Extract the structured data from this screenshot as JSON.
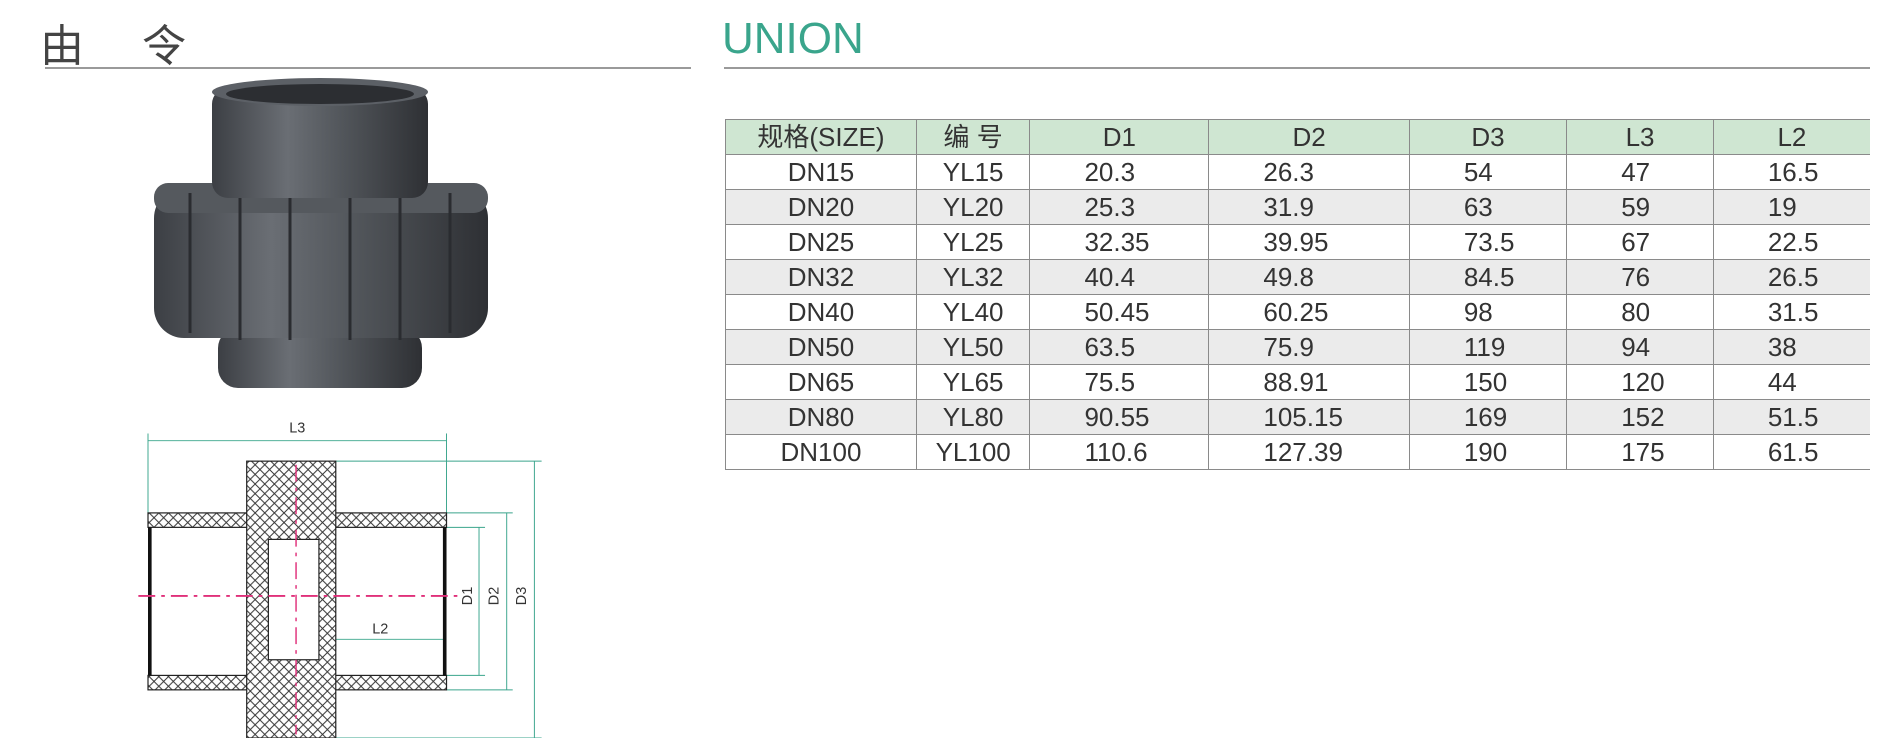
{
  "header": {
    "title_cn": "由 令",
    "title_en": "UNION"
  },
  "table": {
    "columns": [
      "规格(SIZE)",
      "编 号",
      "D1",
      "D2",
      "D3",
      "L3",
      "L2"
    ],
    "rows": [
      [
        "DN15",
        "YL15",
        "20.3",
        "26.3",
        "54",
        "47",
        "16.5"
      ],
      [
        "DN20",
        "YL20",
        "25.3",
        "31.9",
        "63",
        "59",
        "19"
      ],
      [
        "DN25",
        "YL25",
        "32.35",
        "39.95",
        "73.5",
        "67",
        "22.5"
      ],
      [
        "DN32",
        "YL32",
        "40.4",
        "49.8",
        "84.5",
        "76",
        "26.5"
      ],
      [
        "DN40",
        "YL40",
        "50.45",
        "60.25",
        "98",
        "80",
        "31.5"
      ],
      [
        "DN50",
        "YL50",
        "63.5",
        "75.9",
        "119",
        "94",
        "38"
      ],
      [
        "DN65",
        "YL65",
        "75.5",
        "88.91",
        "150",
        "120",
        "44"
      ],
      [
        "DN80",
        "YL80",
        "90.55",
        "105.15",
        "169",
        "152",
        "51.5"
      ],
      [
        "DN100",
        "YL100",
        "110.6",
        "127.39",
        "190",
        "175",
        "61.5"
      ]
    ]
  },
  "diagram": {
    "labels": {
      "l3": "L3",
      "l2": "L2",
      "d1": "D1",
      "d2": "D2",
      "d3": "D3"
    }
  },
  "colors": {
    "accent": "#3aa58c",
    "header_bg": "#cfe6d2",
    "row_alt": "#ebebeb",
    "centerline": "#e0307a"
  }
}
